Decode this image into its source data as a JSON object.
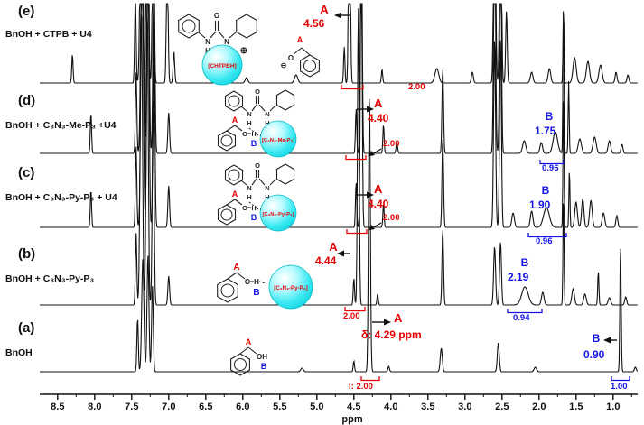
{
  "rows": [
    {
      "id": "e",
      "label": "(e)",
      "sample": "BnOH + CTPB + U4",
      "peak_a": {
        "label": "A",
        "shift": "4.56",
        "integral": "2.00"
      }
    },
    {
      "id": "d",
      "label": "(d)",
      "sample": "BnOH + C₃N₃-Me-P₃ +U4",
      "peak_a": {
        "label": "A",
        "shift": "4.40",
        "integral": "2.00"
      },
      "peak_b": {
        "label": "B",
        "shift": "1.75",
        "integral": "0.96"
      }
    },
    {
      "id": "c",
      "label": "(c)",
      "sample": "BnOH + C₃N₃-Py-P₃ + U4",
      "peak_a": {
        "label": "A",
        "shift": "4.40",
        "integral": "2.00"
      },
      "peak_b": {
        "label": "B",
        "shift": "1.90",
        "integral": "0.96"
      }
    },
    {
      "id": "b",
      "label": "(b)",
      "sample": "BnOH + C₃N₃-Py-P₃",
      "peak_a": {
        "label": "A",
        "shift": "4.44",
        "integral": "2.00"
      },
      "peak_b": {
        "label": "B",
        "shift": "2.19",
        "integral": "0.94"
      }
    },
    {
      "id": "a",
      "label": "(a)",
      "sample": "BnOH",
      "peak_a": {
        "label": "A",
        "shift": "δ: 4.29 ppm",
        "integral": "I: 2.00"
      },
      "peak_b": {
        "label": "B",
        "shift": "0.90",
        "integral": "1.00"
      }
    }
  ],
  "structures": {
    "glyph_O": "O",
    "glyph_N": "N",
    "glyph_H": "H",
    "glyph_OH": "OH",
    "glyph_plus": "⊕",
    "glyph_minus": "⊖",
    "label_A": "A",
    "label_B": "B",
    "ball_e": "[CHTPBH]",
    "ball_d": "[C₃N₃-Me-P₃]",
    "ball_c": "[C₃N₃-Py-P₃]",
    "ball_b": "[C₃N₃-Py-P₃]"
  },
  "axis": {
    "unit": "ppm",
    "ticks": [
      "8.5",
      "8.0",
      "7.5",
      "7.0",
      "6.5",
      "6.0",
      "5.5",
      "5.0",
      "4.5",
      "4.0",
      "3.5",
      "3.0",
      "2.5",
      "2.0",
      "1.5",
      "1.0"
    ]
  },
  "colors": {
    "accent_red": "#e60000",
    "accent_blue": "#1414e6",
    "ball_cyan": "#18dfe8",
    "trace": "#111111"
  },
  "chart_data": {
    "type": "line",
    "title": "",
    "xlabel": "ppm",
    "x_range": [
      8.8,
      0.65
    ],
    "x_axis_inverted": true,
    "ticks": [
      8.5,
      8.0,
      7.5,
      7.0,
      6.5,
      6.0,
      5.5,
      5.0,
      4.5,
      4.0,
      3.5,
      3.0,
      2.5,
      2.0,
      1.5,
      1.0
    ],
    "rows": [
      {
        "id": "e",
        "name": "BnOH + CTPB + U4",
        "baseline": 92,
        "clip": 4,
        "assignments": [
          {
            "peak": "A",
            "ppm": 4.56,
            "integral": 2.0
          }
        ],
        "peaks": [
          [
            8.3,
            32,
            1.0
          ],
          [
            7.45,
            100,
            1.1
          ],
          [
            7.37,
            300,
            1.8
          ],
          [
            7.29,
            300,
            1.6
          ],
          [
            7.21,
            200,
            1.4
          ],
          [
            7.02,
            150,
            1.3
          ],
          [
            6.93,
            35,
            1.2
          ],
          [
            5.95,
            6,
            2
          ],
          [
            5.28,
            9,
            2.5
          ],
          [
            4.63,
            40,
            1.0
          ],
          [
            4.56,
            300,
            1.3
          ],
          [
            4.12,
            15,
            1.0
          ],
          [
            3.38,
            16,
            3
          ],
          [
            2.9,
            12,
            1.5
          ],
          [
            2.6,
            300,
            1.5
          ],
          [
            2.52,
            300,
            1.4
          ],
          [
            2.44,
            80,
            1.2
          ],
          [
            2.1,
            12,
            2
          ],
          [
            1.86,
            16,
            2
          ],
          [
            1.67,
            78,
            0.8
          ],
          [
            1.52,
            28,
            2.5
          ],
          [
            1.34,
            24,
            2.5
          ],
          [
            1.17,
            20,
            2.5
          ],
          [
            0.96,
            12,
            1.5
          ],
          [
            0.8,
            9,
            1.5
          ]
        ]
      },
      {
        "id": "d",
        "name": "BnOH + C₃N₃-Me-P₃ +U4",
        "baseline": 170,
        "clip": 4,
        "assignments": [
          {
            "peak": "A",
            "ppm": 4.4,
            "integral": 2.0
          },
          {
            "peak": "B",
            "ppm": 1.75,
            "integral": 0.96
          }
        ],
        "peaks": [
          [
            8.05,
            45,
            1.0
          ],
          [
            7.44,
            90,
            1.1
          ],
          [
            7.36,
            340,
            1.8
          ],
          [
            7.28,
            340,
            1.6
          ],
          [
            7.2,
            240,
            1.4
          ],
          [
            7.0,
            45,
            1.3
          ],
          [
            4.47,
            50,
            1.0
          ],
          [
            4.4,
            340,
            1.3
          ],
          [
            4.1,
            32,
            1.0
          ],
          [
            3.92,
            12,
            1.2
          ],
          [
            3.3,
            95,
            1.2
          ],
          [
            2.6,
            260,
            1.5
          ],
          [
            2.52,
            260,
            1.4
          ],
          [
            2.2,
            14,
            2.5
          ],
          [
            1.97,
            12,
            2
          ],
          [
            1.78,
            24,
            3.5
          ],
          [
            1.67,
            175,
            0.8
          ],
          [
            1.6,
            80,
            0.8
          ],
          [
            1.45,
            16,
            2.5
          ],
          [
            1.25,
            18,
            2.5
          ],
          [
            1.05,
            14,
            2
          ],
          [
            0.88,
            10,
            1.5
          ]
        ]
      },
      {
        "id": "c",
        "name": "BnOH + C₃N₃-Py-P₃ + U4",
        "baseline": 252,
        "clip": 4,
        "assignments": [
          {
            "peak": "A",
            "ppm": 4.4,
            "integral": 2.0
          },
          {
            "peak": "B",
            "ppm": 1.9,
            "integral": 0.96
          }
        ],
        "peaks": [
          [
            8.05,
            42,
            1.0
          ],
          [
            7.44,
            90,
            1.1
          ],
          [
            7.36,
            340,
            1.8
          ],
          [
            7.28,
            340,
            1.6
          ],
          [
            7.2,
            240,
            1.4
          ],
          [
            7.0,
            46,
            1.3
          ],
          [
            4.47,
            50,
            1.0
          ],
          [
            4.4,
            340,
            1.3
          ],
          [
            4.1,
            26,
            1.0
          ],
          [
            3.3,
            100,
            1.2
          ],
          [
            2.6,
            210,
            1.5
          ],
          [
            2.52,
            210,
            1.4
          ],
          [
            2.35,
            16,
            2
          ],
          [
            2.1,
            18,
            2
          ],
          [
            1.9,
            22,
            4.5
          ],
          [
            1.67,
            155,
            0.8
          ],
          [
            1.59,
            65,
            0.8
          ],
          [
            1.5,
            28,
            2
          ],
          [
            1.41,
            32,
            1.8
          ],
          [
            1.3,
            30,
            2
          ],
          [
            1.13,
            16,
            2
          ],
          [
            0.95,
            13,
            1.5
          ]
        ]
      },
      {
        "id": "b",
        "name": "BnOH + C₃N₃-Py-P₃",
        "baseline": 338,
        "clip": 4,
        "assignments": [
          {
            "peak": "A",
            "ppm": 4.44,
            "integral": 2.0
          },
          {
            "peak": "B",
            "ppm": 2.19,
            "integral": 0.94
          }
        ],
        "peaks": [
          [
            7.44,
            80,
            1.1
          ],
          [
            7.37,
            330,
            1.8
          ],
          [
            7.29,
            330,
            1.6
          ],
          [
            7.21,
            230,
            1.4
          ],
          [
            7.0,
            32,
            1.3
          ],
          [
            4.5,
            30,
            1.0
          ],
          [
            4.44,
            330,
            1.3
          ],
          [
            4.18,
            12,
            1.0
          ],
          [
            3.3,
            85,
            1.2
          ],
          [
            2.6,
            65,
            1.5
          ],
          [
            2.52,
            70,
            1.4
          ],
          [
            2.19,
            20,
            5
          ],
          [
            1.95,
            14,
            2
          ],
          [
            1.67,
            125,
            0.8
          ],
          [
            1.54,
            18,
            2
          ],
          [
            1.38,
            12,
            2
          ],
          [
            1.2,
            38,
            0.9
          ],
          [
            1.05,
            8,
            2
          ],
          [
            0.83,
            9,
            1.5
          ]
        ]
      },
      {
        "id": "a",
        "name": "BnOH",
        "baseline": 412,
        "clip": 4,
        "assignments": [
          {
            "peak": "A",
            "ppm": 4.29,
            "integral": 2.0
          },
          {
            "peak": "B",
            "ppm": 0.9,
            "integral": 1.0
          }
        ],
        "peaks": [
          [
            7.42,
            60,
            1.1
          ],
          [
            7.35,
            125,
            1.7
          ],
          [
            7.28,
            130,
            1.5
          ],
          [
            7.22,
            95,
            1.3
          ],
          [
            5.2,
            4,
            2
          ],
          [
            4.5,
            12,
            1.0
          ],
          [
            4.29,
            310,
            1.4
          ],
          [
            4.03,
            6,
            1.2
          ],
          [
            3.32,
            26,
            1.6
          ],
          [
            2.55,
            32,
            1.5
          ],
          [
            2.05,
            5,
            2
          ],
          [
            0.9,
            142,
            1.0
          ],
          [
            0.7,
            5,
            1.5
          ]
        ]
      }
    ]
  }
}
